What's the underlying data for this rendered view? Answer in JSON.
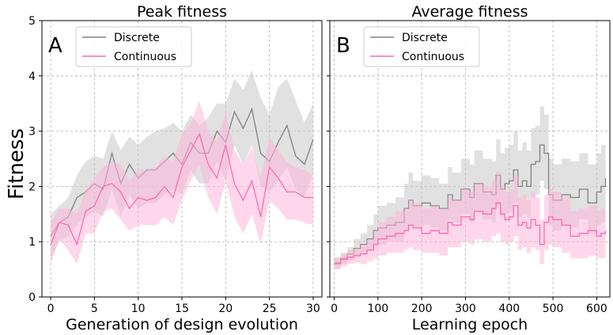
{
  "colors": {
    "discrete": "#808080",
    "discrete_band": "#c8c8c8",
    "continuous": "#ff69b4",
    "continuous_band": "#ffb6d9",
    "grid": "#b0b0b0"
  },
  "figure": {
    "ylabel": "Fitness"
  },
  "chart_data": [
    {
      "type": "line",
      "panel_letter": "A",
      "title": "Peak fitness",
      "xlabel": "Generation of design evolution",
      "ylabel": "Fitness",
      "xlim": [
        -1,
        31
      ],
      "ylim": [
        0,
        5
      ],
      "xticks": [
        0,
        5,
        10,
        15,
        20,
        25,
        30
      ],
      "yticks": [
        0,
        1,
        2,
        3,
        4,
        5
      ],
      "grid": true,
      "legend": [
        "Discrete",
        "Continuous"
      ],
      "legend_position": "top-left",
      "series": [
        {
          "name": "Discrete",
          "color_key": "discrete",
          "x": [
            0,
            1,
            2,
            3,
            4,
            5,
            6,
            7,
            8,
            9,
            10,
            11,
            12,
            13,
            14,
            15,
            16,
            17,
            18,
            19,
            20,
            21,
            22,
            23,
            24,
            25,
            26,
            27,
            28,
            29,
            30
          ],
          "values": [
            1.1,
            1.35,
            1.45,
            1.8,
            1.9,
            2.05,
            1.95,
            2.6,
            2.05,
            2.4,
            2.15,
            2.3,
            2.3,
            2.45,
            2.6,
            2.4,
            2.8,
            2.6,
            2.6,
            3.0,
            2.8,
            3.35,
            3.05,
            3.4,
            2.6,
            2.45,
            2.8,
            3.1,
            2.55,
            2.4,
            2.85
          ],
          "upper": [
            1.5,
            1.65,
            1.8,
            2.2,
            2.45,
            2.55,
            2.5,
            3.0,
            2.65,
            2.9,
            2.75,
            2.9,
            3.0,
            3.05,
            3.15,
            3.0,
            3.3,
            3.1,
            3.25,
            3.5,
            3.5,
            3.95,
            3.75,
            4.1,
            3.6,
            3.3,
            3.8,
            3.95,
            3.55,
            3.15,
            3.5
          ],
          "lower": [
            0.7,
            1.0,
            1.1,
            1.3,
            1.45,
            1.55,
            1.45,
            1.95,
            1.45,
            1.85,
            1.6,
            1.7,
            1.7,
            1.85,
            1.95,
            1.85,
            2.3,
            2.05,
            2.05,
            2.45,
            2.1,
            2.75,
            2.4,
            2.75,
            2.0,
            1.9,
            2.1,
            2.35,
            1.95,
            1.8,
            2.25
          ]
        },
        {
          "name": "Continuous",
          "color_key": "continuous",
          "x": [
            0,
            1,
            2,
            3,
            4,
            5,
            6,
            7,
            8,
            9,
            10,
            11,
            12,
            13,
            14,
            15,
            16,
            17,
            18,
            19,
            20,
            21,
            22,
            23,
            24,
            25,
            26,
            27,
            28,
            29,
            30
          ],
          "values": [
            0.95,
            1.35,
            1.3,
            0.95,
            1.55,
            1.65,
            2.0,
            2.05,
            1.9,
            1.6,
            1.8,
            1.75,
            1.8,
            2.0,
            1.8,
            2.35,
            2.65,
            2.95,
            2.4,
            2.15,
            2.75,
            2.05,
            1.75,
            2.1,
            1.45,
            2.35,
            2.15,
            1.9,
            1.9,
            1.8,
            1.8
          ],
          "upper": [
            1.35,
            1.6,
            1.6,
            1.5,
            1.95,
            2.15,
            2.35,
            2.45,
            2.4,
            2.1,
            2.3,
            2.3,
            2.35,
            2.55,
            2.45,
            2.95,
            3.15,
            3.55,
            3.0,
            2.8,
            3.35,
            2.65,
            2.4,
            2.7,
            2.15,
            2.9,
            2.65,
            2.45,
            2.35,
            2.3,
            2.2
          ],
          "lower": [
            0.6,
            1.05,
            0.85,
            0.6,
            1.15,
            1.15,
            1.55,
            1.6,
            1.4,
            1.2,
            1.3,
            1.3,
            1.3,
            1.45,
            1.3,
            1.75,
            2.1,
            2.4,
            1.8,
            1.5,
            2.1,
            1.45,
            1.15,
            1.5,
            0.95,
            1.75,
            1.6,
            1.4,
            1.4,
            1.35,
            1.3
          ]
        }
      ]
    },
    {
      "type": "line",
      "panel_letter": "B",
      "title": "Average fitness",
      "xlabel": "Learning epoch",
      "ylabel": "Fitness",
      "xlim": [
        -10,
        630
      ],
      "ylim": [
        0,
        5
      ],
      "xticks": [
        0,
        100,
        200,
        300,
        400,
        500,
        600
      ],
      "yticks": [
        0,
        1,
        2,
        3,
        4,
        5
      ],
      "grid": true,
      "legend": [
        "Discrete",
        "Continuous"
      ],
      "legend_position": "top-left",
      "series": [
        {
          "name": "Discrete",
          "color_key": "discrete",
          "step": true,
          "x": [
            0,
            15,
            30,
            45,
            60,
            75,
            90,
            100,
            120,
            140,
            160,
            170,
            180,
            200,
            220,
            240,
            260,
            270,
            290,
            310,
            320,
            340,
            360,
            370,
            380,
            390,
            400,
            410,
            420,
            430,
            440,
            450,
            460,
            470,
            480,
            490,
            500,
            520,
            540,
            560,
            580,
            600,
            610,
            620
          ],
          "values": [
            0.62,
            0.7,
            0.78,
            0.88,
            0.95,
            1.05,
            1.2,
            1.25,
            1.3,
            1.35,
            1.6,
            1.75,
            1.65,
            1.7,
            1.65,
            1.6,
            1.85,
            1.75,
            1.95,
            1.8,
            2.05,
            1.9,
            1.85,
            2.2,
            1.95,
            2.05,
            2.1,
            2.3,
            2.0,
            2.1,
            2.0,
            2.4,
            2.45,
            2.75,
            2.6,
            1.85,
            1.75,
            1.85,
            1.8,
            1.95,
            1.7,
            1.9,
            2.0,
            2.15
          ],
          "upper": [
            0.72,
            0.8,
            0.9,
            1.05,
            1.15,
            1.3,
            1.5,
            1.65,
            1.7,
            1.8,
            2.05,
            2.25,
            2.1,
            2.2,
            2.15,
            2.05,
            2.35,
            2.25,
            2.5,
            2.4,
            2.65,
            2.5,
            2.45,
            2.85,
            2.6,
            2.7,
            2.75,
            3.0,
            2.65,
            2.8,
            2.65,
            3.05,
            3.1,
            3.45,
            3.3,
            2.5,
            2.4,
            2.5,
            2.45,
            2.6,
            2.4,
            2.6,
            2.75,
            2.9
          ],
          "lower": [
            0.52,
            0.6,
            0.66,
            0.72,
            0.78,
            0.85,
            0.95,
            0.95,
            1.0,
            1.0,
            1.2,
            1.3,
            1.25,
            1.3,
            1.25,
            1.2,
            1.4,
            1.35,
            1.5,
            1.35,
            1.55,
            1.4,
            1.35,
            1.65,
            1.45,
            1.5,
            1.55,
            1.7,
            1.45,
            1.5,
            1.45,
            1.8,
            1.85,
            2.1,
            1.95,
            1.3,
            1.2,
            1.3,
            1.25,
            1.4,
            1.15,
            1.3,
            1.35,
            1.45
          ]
        },
        {
          "name": "Continuous",
          "color_key": "continuous",
          "step": true,
          "x": [
            0,
            15,
            30,
            45,
            60,
            75,
            90,
            100,
            120,
            140,
            160,
            170,
            180,
            200,
            220,
            240,
            260,
            270,
            290,
            310,
            320,
            340,
            360,
            370,
            380,
            390,
            400,
            410,
            420,
            430,
            440,
            450,
            460,
            470,
            480,
            490,
            500,
            520,
            540,
            560,
            580,
            600,
            610,
            620
          ],
          "values": [
            0.6,
            0.68,
            0.72,
            0.75,
            0.78,
            0.85,
            0.95,
            1.05,
            1.1,
            1.15,
            1.2,
            1.3,
            1.25,
            1.15,
            1.2,
            1.15,
            1.35,
            1.3,
            1.45,
            1.4,
            1.55,
            1.5,
            1.6,
            1.7,
            1.5,
            1.4,
            1.45,
            1.65,
            1.3,
            1.35,
            1.25,
            1.4,
            1.3,
            0.95,
            1.35,
            1.45,
            1.4,
            1.3,
            1.1,
            1.15,
            1.2,
            1.1,
            1.15,
            1.2
          ],
          "upper": [
            0.7,
            0.78,
            0.84,
            0.88,
            0.95,
            1.05,
            1.2,
            1.35,
            1.45,
            1.55,
            1.6,
            1.75,
            1.7,
            1.6,
            1.65,
            1.6,
            1.8,
            1.75,
            1.95,
            1.9,
            2.05,
            2.0,
            2.1,
            2.25,
            2.0,
            1.9,
            1.95,
            2.2,
            1.8,
            1.85,
            1.75,
            1.9,
            1.8,
            1.4,
            1.85,
            1.95,
            1.9,
            1.8,
            1.55,
            1.6,
            1.65,
            1.55,
            1.6,
            1.65
          ],
          "lower": [
            0.5,
            0.56,
            0.6,
            0.62,
            0.6,
            0.65,
            0.7,
            0.75,
            0.8,
            0.8,
            0.85,
            0.9,
            0.85,
            0.8,
            0.8,
            0.75,
            0.9,
            0.9,
            1.0,
            0.95,
            1.05,
            1.0,
            1.1,
            1.15,
            1.0,
            0.95,
            1.0,
            1.1,
            0.85,
            0.9,
            0.8,
            0.9,
            0.85,
            0.6,
            0.85,
            0.95,
            0.9,
            0.8,
            0.7,
            0.7,
            0.75,
            0.7,
            0.7,
            0.75
          ]
        }
      ]
    }
  ]
}
